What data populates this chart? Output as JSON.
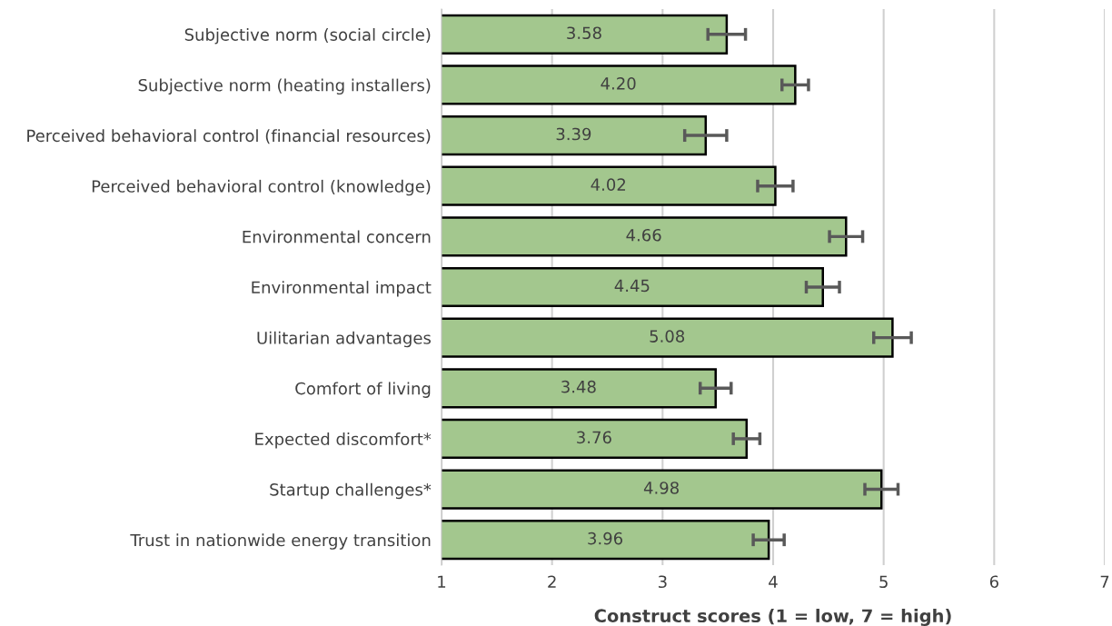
{
  "chart_data": {
    "type": "bar",
    "orientation": "horizontal",
    "categories": [
      "Subjective norm (social circle)",
      "Subjective norm (heating installers)",
      "Perceived behavioral control (financial resources)",
      "Perceived behavioral control (knowledge)",
      "Environmental concern",
      "Environmental impact",
      "Uilitarian advantages",
      "Comfort of living",
      "Expected discomfort*",
      "Startup challenges*",
      "Trust in nationwide energy transition"
    ],
    "values": [
      3.58,
      4.2,
      3.39,
      4.02,
      4.66,
      4.45,
      5.08,
      3.48,
      3.76,
      4.98,
      3.96
    ],
    "value_labels": [
      "3.58",
      "4.20",
      "3.39",
      "4.02",
      "4.66",
      "4.45",
      "5.08",
      "3.48",
      "3.76",
      "4.98",
      "3.96"
    ],
    "errors": [
      0.17,
      0.12,
      0.19,
      0.16,
      0.15,
      0.15,
      0.17,
      0.14,
      0.12,
      0.15,
      0.14
    ],
    "color": "#a3c78e",
    "xlabel": "Construct scores (1 = low, 7 = high)",
    "xlim": [
      1,
      7
    ],
    "xticks": [
      1,
      2,
      3,
      4,
      5,
      6,
      7
    ],
    "grid": "x"
  }
}
